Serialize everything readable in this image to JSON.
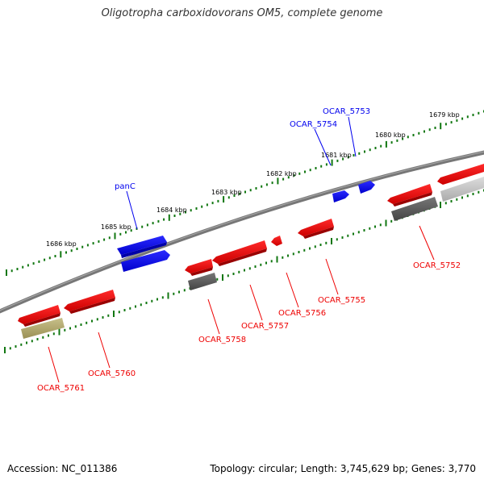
{
  "title": "Oligotropha carboxidovorans OM5, complete genome",
  "footer": {
    "accession": "Accession: NC_011386",
    "stats": "Topology: circular; Length: 3,745,629 bp; Genes: 3,770"
  },
  "colors": {
    "forward_gene": "#0000ee",
    "reverse_gene": "#ee0000",
    "backbone": "#888888",
    "tick": "#117711",
    "grey_feature": "#555555",
    "light_feature": "#bbbbbb",
    "olive_feature": "#aaa066"
  },
  "ruler_labels": [
    "1686 kbp",
    "1685 kbp",
    "1684 kbp",
    "1683 kbp",
    "1682 kbp",
    "1681 kbp",
    "1680 kbp",
    "1679 kbp"
  ],
  "gene_labels": {
    "forward": [
      "panC",
      "OCAR_5754",
      "OCAR_5753"
    ],
    "reverse": [
      "OCAR_5761",
      "OCAR_5760",
      "OCAR_5758",
      "OCAR_5757",
      "OCAR_5756",
      "OCAR_5755",
      "OCAR_5752"
    ]
  }
}
